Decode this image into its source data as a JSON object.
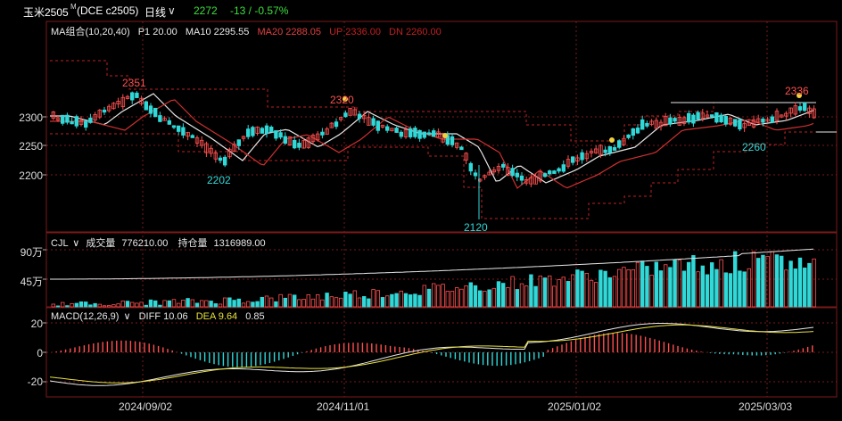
{
  "header": {
    "symbol": "玉米2505",
    "superscript": "M",
    "code": "(DCE c2505)",
    "period": "日线",
    "period_arrow": "∨",
    "last": "2272",
    "change": "-13 / -0.57%"
  },
  "price_panel": {
    "indicator": "MA组合(10,20,40)",
    "legend": [
      {
        "text": "P1 20.00",
        "color": "#e8e8e8"
      },
      {
        "text": "MA10 2295.55",
        "color": "#e8e8e8"
      },
      {
        "text": "MA20 2288.05",
        "color": "#e04040"
      },
      {
        "text": "UP 2336.00",
        "color": "#c02020"
      },
      {
        "text": "DN 2260.00",
        "color": "#c02020"
      }
    ],
    "y_ticks": [
      "2300",
      "2250",
      "2200"
    ],
    "annotations": [
      "2351",
      "2320",
      "2202",
      "2120",
      "2336",
      "2260"
    ]
  },
  "volume_panel": {
    "indicator": "CJL",
    "vol_label": "成交量",
    "vol_value": "776210.00",
    "oi_label": "持仓量",
    "oi_value": "1316989.00",
    "y_ticks": [
      "90万",
      "45万"
    ]
  },
  "macd_panel": {
    "indicator": "MACD(12,26,9)",
    "diff": "DIFF 10.06",
    "dea": "DEA 9.64",
    "macd": "0.85",
    "y_ticks": [
      "20",
      "0",
      "-20"
    ]
  },
  "x_axis": [
    "2024/09/02",
    "2024/11/01",
    "2025/01/02",
    "2025/03/03"
  ],
  "colors": {
    "up": "#ff5050",
    "down": "#30d8d8",
    "grid": "#7a1a1a",
    "ma10": "#e8e8e8",
    "ma20": "#d03030",
    "band": "#c02020"
  }
}
